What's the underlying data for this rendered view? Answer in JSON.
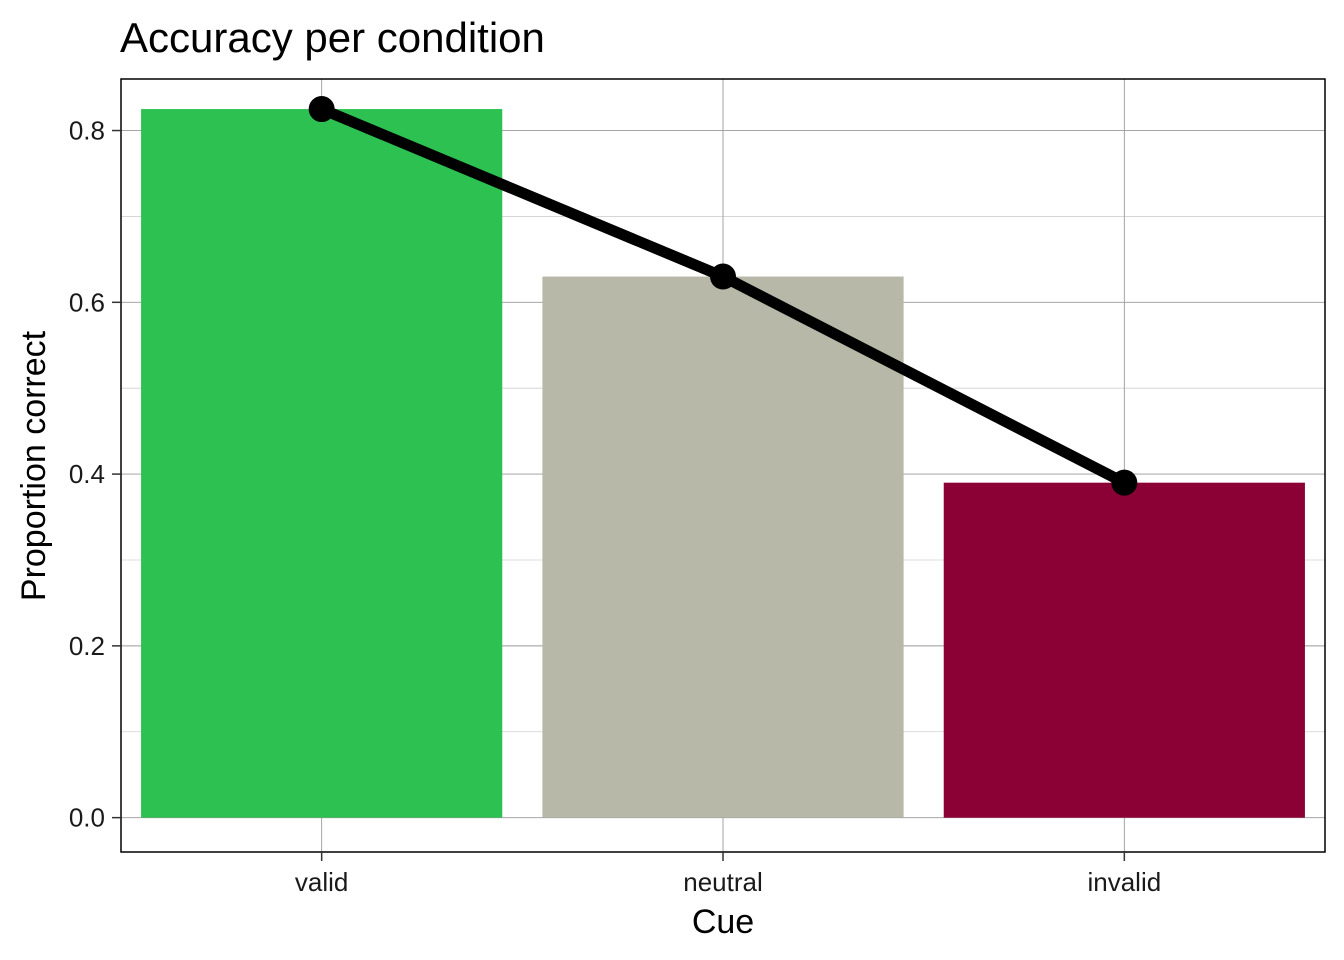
{
  "chart_data": {
    "type": "bar",
    "title": "Accuracy per condition",
    "xlabel": "Cue",
    "ylabel": "Proportion correct",
    "categories": [
      "valid",
      "neutral",
      "invalid"
    ],
    "values": [
      0.825,
      0.63,
      0.39
    ],
    "bar_colors": [
      "#2DC152",
      "#B7B8A7",
      "#8B0035"
    ],
    "line_overlay": {
      "color": "#000000",
      "markers": "filled-circle"
    },
    "ylim": [
      -0.04,
      0.86
    ],
    "yticks": [
      0.0,
      0.2,
      0.4,
      0.6,
      0.8
    ],
    "ytick_labels": [
      "0.0",
      "0.2",
      "0.4",
      "0.6",
      "0.8"
    ],
    "grid": true,
    "legend": "none"
  }
}
